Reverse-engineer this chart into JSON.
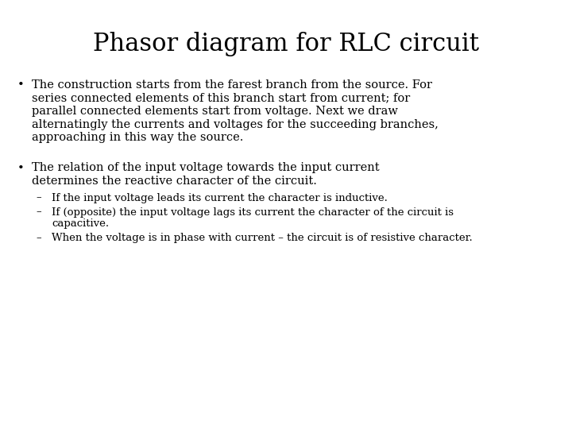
{
  "title": "Phasor diagram for RLC circuit",
  "background_color": "#ffffff",
  "text_color": "#000000",
  "title_fontsize": 22,
  "body_fontsize": 10.5,
  "sub_fontsize": 9.5,
  "font_family": "serif",
  "bullet1_lines": [
    "The construction starts from the farest branch from the source. For",
    "series connected elements of this branch start from current; for",
    "parallel connected elements start from voltage. Next we draw",
    "alternatingly the currents and voltages for the succeeding branches,",
    "approaching in this way the source."
  ],
  "bullet2_lines": [
    "The relation of the input voltage towards the input current",
    "determines the reactive character of the circuit."
  ],
  "sub1": [
    "If the input voltage leads its current the character is inductive."
  ],
  "sub2": [
    "If (opposite) the input voltage lags its current the character of the circuit is",
    "capacitive."
  ],
  "sub3": [
    "When the voltage is in phase with current – the circuit is of resistive character."
  ]
}
